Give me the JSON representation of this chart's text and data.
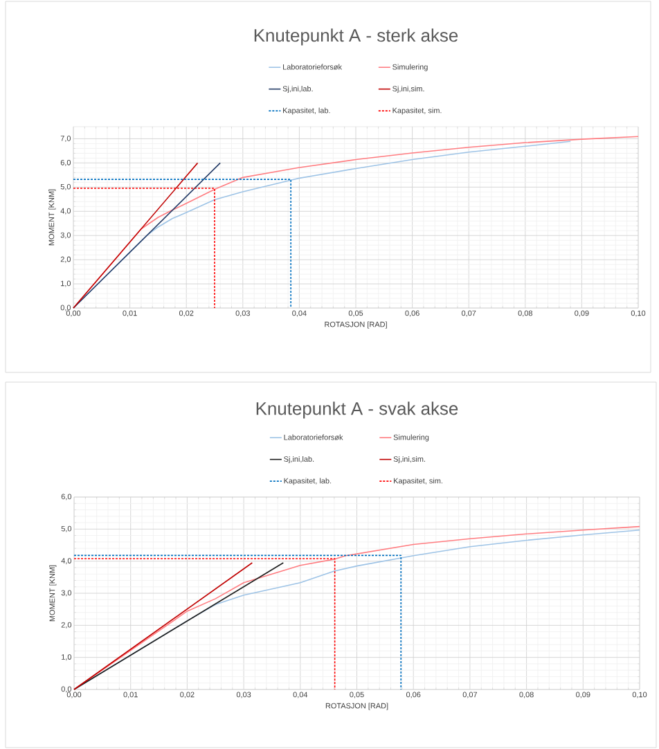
{
  "chart_data": [
    {
      "type": "line",
      "title": "Knutepunkt A - sterk akse",
      "xlabel": "ROTASJON [RAD]",
      "ylabel": "MOMENT [KNM]",
      "xlim": [
        0,
        0.1
      ],
      "ylim": [
        0,
        7.5
      ],
      "xticks": [
        {
          "value": 0,
          "label": "0,00"
        },
        {
          "value": 0.01,
          "label": "0,01"
        },
        {
          "value": 0.02,
          "label": "0,02"
        },
        {
          "value": 0.03,
          "label": "0,03"
        },
        {
          "value": 0.04,
          "label": "0,04"
        },
        {
          "value": 0.05,
          "label": "0,05"
        },
        {
          "value": 0.06,
          "label": "0,06"
        },
        {
          "value": 0.07,
          "label": "0,07"
        },
        {
          "value": 0.08,
          "label": "0,08"
        },
        {
          "value": 0.09,
          "label": "0,09"
        },
        {
          "value": 0.1,
          "label": "0,10"
        }
      ],
      "yticks": [
        {
          "value": 0,
          "label": "0,0"
        },
        {
          "value": 1,
          "label": "1,0"
        },
        {
          "value": 2,
          "label": "2,0"
        },
        {
          "value": 3,
          "label": "3,0"
        },
        {
          "value": 4,
          "label": "4,0"
        },
        {
          "value": 5,
          "label": "5,0"
        },
        {
          "value": 6,
          "label": "6,0"
        },
        {
          "value": 7,
          "label": "7,0"
        }
      ],
      "grid": true,
      "legend": "top",
      "series": [
        {
          "name": "Laboratorieforsøk",
          "color": "#9dc3e6",
          "x": [
            0,
            0.013,
            0.015,
            0.0175,
            0.02,
            0.025,
            0.03,
            0.0385,
            0.04,
            0.05,
            0.06,
            0.07,
            0.08,
            0.088
          ],
          "values": [
            0,
            3.0,
            3.35,
            3.7,
            3.95,
            4.48,
            4.81,
            5.29,
            5.37,
            5.77,
            6.14,
            6.45,
            6.69,
            6.89
          ]
        },
        {
          "name": "Simulering",
          "color": "#ff7c80",
          "x": [
            0,
            0.012,
            0.015,
            0.0175,
            0.02,
            0.025,
            0.03,
            0.04,
            0.05,
            0.06,
            0.07,
            0.08,
            0.09,
            0.1
          ],
          "values": [
            0,
            3.27,
            3.75,
            4.05,
            4.33,
            4.91,
            5.4,
            5.81,
            6.14,
            6.41,
            6.65,
            6.84,
            6.98,
            7.09
          ]
        },
        {
          "name": "Sj,ini,lab.",
          "color": "#203864",
          "x": [
            0,
            0.026
          ],
          "values": [
            0,
            6.0
          ]
        },
        {
          "name": "Sj,ini,sim.",
          "color": "#c00000",
          "x": [
            0,
            0.022
          ],
          "values": [
            0,
            6.0
          ]
        },
        {
          "name": "Kapasitet, lab.",
          "color": "#0070c0",
          "line_style": "dashed",
          "x": [
            0,
            0.0385,
            0.0385
          ],
          "values": [
            5.32,
            5.32,
            0
          ]
        },
        {
          "name": "Kapasitet, sim.",
          "color": "#ff0000",
          "line_style": "dashed",
          "x": [
            0,
            0.025,
            0.025
          ],
          "values": [
            4.95,
            4.95,
            0
          ]
        }
      ]
    },
    {
      "type": "line",
      "title": "Knutepunkt A - svak akse",
      "xlabel": "ROTASJON [RAD]",
      "ylabel": "MOMENT [KNM]",
      "xlim": [
        0,
        0.1
      ],
      "ylim": [
        0,
        6
      ],
      "xticks": [
        {
          "value": 0,
          "label": "0,00"
        },
        {
          "value": 0.01,
          "label": "0,01"
        },
        {
          "value": 0.02,
          "label": "0,02"
        },
        {
          "value": 0.03,
          "label": "0,03"
        },
        {
          "value": 0.04,
          "label": "0,04"
        },
        {
          "value": 0.05,
          "label": "0,05"
        },
        {
          "value": 0.06,
          "label": "0,06"
        },
        {
          "value": 0.07,
          "label": "0,07"
        },
        {
          "value": 0.08,
          "label": "0,08"
        },
        {
          "value": 0.09,
          "label": "0,09"
        },
        {
          "value": 0.1,
          "label": "0,10"
        }
      ],
      "yticks": [
        {
          "value": 0,
          "label": "0,0"
        },
        {
          "value": 1,
          "label": "1,0"
        },
        {
          "value": 2,
          "label": "2,0"
        },
        {
          "value": 3,
          "label": "3,0"
        },
        {
          "value": 4,
          "label": "4,0"
        },
        {
          "value": 5,
          "label": "5,0"
        },
        {
          "value": 6,
          "label": "6,0"
        }
      ],
      "grid": true,
      "legend": "top",
      "series": [
        {
          "name": "Laboratorieforsøk",
          "color": "#9dc3e6",
          "x": [
            0,
            0.02,
            0.025,
            0.03,
            0.04,
            0.046,
            0.05,
            0.06,
            0.07,
            0.08,
            0.09,
            0.1
          ],
          "values": [
            0,
            2.14,
            2.65,
            2.94,
            3.33,
            3.69,
            3.85,
            4.17,
            4.45,
            4.65,
            4.82,
            4.97
          ]
        },
        {
          "name": "Simulering",
          "color": "#ff7c80",
          "x": [
            0,
            0.02,
            0.025,
            0.03,
            0.04,
            0.046,
            0.048,
            0.06,
            0.07,
            0.08,
            0.09,
            0.1
          ],
          "values": [
            0,
            2.44,
            2.83,
            3.33,
            3.87,
            4.06,
            4.17,
            4.52,
            4.7,
            4.85,
            4.97,
            5.08
          ]
        },
        {
          "name": "Sj,ini,lab.",
          "color": "#1f1f1f",
          "x": [
            0,
            0.037
          ],
          "values": [
            0,
            3.95
          ]
        },
        {
          "name": "Sj,ini,sim.",
          "color": "#c00000",
          "x": [
            0,
            0.0315
          ],
          "values": [
            0,
            3.95
          ]
        },
        {
          "name": "Kapasitet, lab.",
          "color": "#0070c0",
          "line_style": "dashed",
          "x": [
            0,
            0.0578,
            0.0578
          ],
          "values": [
            4.18,
            4.18,
            0
          ]
        },
        {
          "name": "Kapasitet, sim.",
          "color": "#ff0000",
          "line_style": "dashed",
          "x": [
            0,
            0.0461,
            0.0461
          ],
          "values": [
            4.08,
            4.08,
            0
          ]
        }
      ]
    }
  ]
}
